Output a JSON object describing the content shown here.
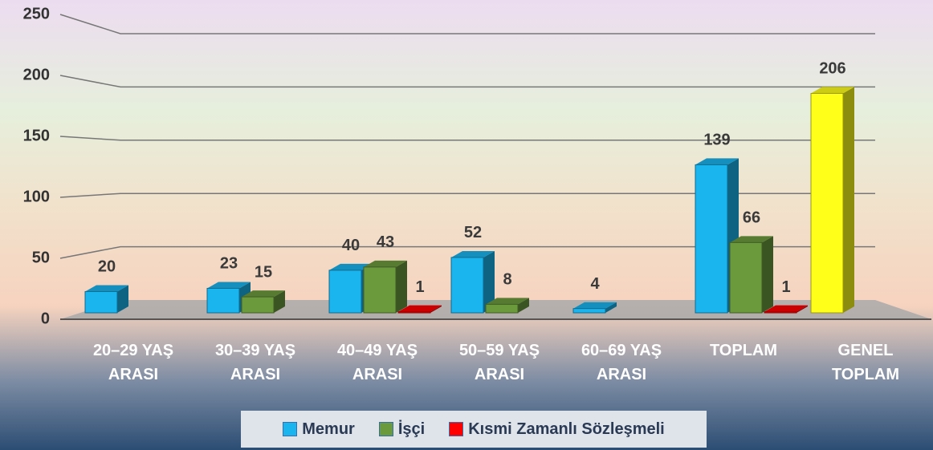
{
  "chart_data": {
    "type": "bar3d",
    "categories": [
      "20–29 YAŞ ARASI",
      "30–39 YAŞ ARASI",
      "40–49 YAŞ ARASI",
      "50–59 YAŞ ARASI",
      "60–69 YAŞ ARASI",
      "TOPLAM",
      "GENEL TOPLAM"
    ],
    "series": [
      {
        "name": "Memur",
        "color": "#1ab4ee",
        "values": [
          20,
          23,
          40,
          52,
          4,
          139,
          null
        ]
      },
      {
        "name": "İşçi",
        "color": "#6b9a3d",
        "values": [
          null,
          15,
          43,
          8,
          null,
          66,
          null
        ]
      },
      {
        "name": "Kısmi Zamanlı Sözleşmeli",
        "color": "#ff0000",
        "values": [
          null,
          null,
          1,
          null,
          null,
          1,
          null
        ]
      },
      {
        "color": "#ffff1a",
        "values": [
          null,
          null,
          null,
          null,
          null,
          null,
          206
        ]
      }
    ],
    "ylim": [
      0,
      250
    ],
    "yticks": [
      0,
      50,
      100,
      150,
      200,
      250
    ],
    "grid": true
  }
}
